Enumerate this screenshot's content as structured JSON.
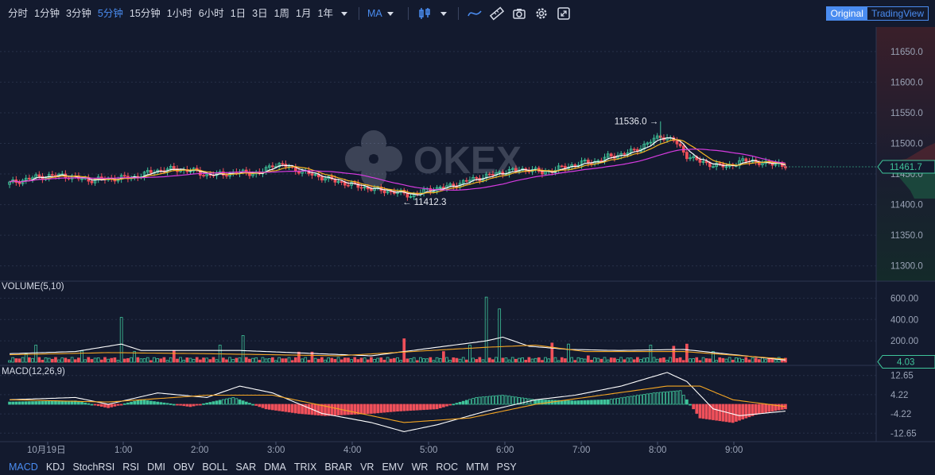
{
  "toolbar": {
    "intervals": [
      {
        "label": "分时",
        "active": false
      },
      {
        "label": "1分钟",
        "active": false
      },
      {
        "label": "3分钟",
        "active": false
      },
      {
        "label": "5分钟",
        "active": true
      },
      {
        "label": "15分钟",
        "active": false
      },
      {
        "label": "1小时",
        "active": false
      },
      {
        "label": "6小时",
        "active": false
      },
      {
        "label": "1日",
        "active": false
      },
      {
        "label": "3日",
        "active": false
      },
      {
        "label": "1周",
        "active": false
      },
      {
        "label": "1月",
        "active": false
      },
      {
        "label": "1年",
        "active": false
      }
    ],
    "indicator_label": "MA",
    "icons": [
      "candle-style-icon",
      "line-style-icon",
      "ruler-icon",
      "camera-icon",
      "gear-icon",
      "fullscreen-icon"
    ],
    "view_original": "Original",
    "view_tradingview": "TradingView",
    "accent_color": "#4a8cf0"
  },
  "watermark": "OKEX",
  "colors": {
    "up": "#3fc49a",
    "down": "#f0505a",
    "ma_white": "#ffffff",
    "ma_yellow": "#f5b623",
    "ma_magenta": "#d63be0",
    "ma_orange": "#f5a623",
    "last_price": "#3fc49a"
  },
  "bottom_indicators": [
    {
      "label": "MACD",
      "active": true
    },
    {
      "label": "KDJ",
      "active": false
    },
    {
      "label": "StochRSI",
      "active": false
    },
    {
      "label": "RSI",
      "active": false
    },
    {
      "label": "DMI",
      "active": false
    },
    {
      "label": "OBV",
      "active": false
    },
    {
      "label": "BOLL",
      "active": false
    },
    {
      "label": "SAR",
      "active": false
    },
    {
      "label": "DMA",
      "active": false
    },
    {
      "label": "TRIX",
      "active": false
    },
    {
      "label": "BRAR",
      "active": false
    },
    {
      "label": "VR",
      "active": false
    },
    {
      "label": "EMV",
      "active": false
    },
    {
      "label": "WR",
      "active": false
    },
    {
      "label": "ROC",
      "active": false
    },
    {
      "label": "MTM",
      "active": false
    },
    {
      "label": "PSY",
      "active": false
    }
  ],
  "chart_data": [
    {
      "type": "candlestick",
      "pane": "price",
      "ylim": [
        11275,
        11690
      ],
      "y_ticks": [
        "11300.0",
        "11350.0",
        "11400.0",
        "11450.0",
        "11500.0",
        "11550.0",
        "11600.0",
        "11650.0"
      ],
      "high_annotation": "11536.0 →",
      "high_value": 11536.0,
      "low_annotation": "← 11412.3",
      "low_value": 11412.3,
      "last_price_label": "11461.7",
      "last_price": 11461.7,
      "close_path": [
        [
          0,
          11435
        ],
        [
          8,
          11445
        ],
        [
          16,
          11448
        ],
        [
          24,
          11440
        ],
        [
          30,
          11442
        ],
        [
          38,
          11445
        ],
        [
          44,
          11455
        ],
        [
          50,
          11458
        ],
        [
          56,
          11455
        ],
        [
          60,
          11448
        ],
        [
          64,
          11450
        ],
        [
          72,
          11453
        ],
        [
          76,
          11450
        ],
        [
          80,
          11466
        ],
        [
          84,
          11463
        ],
        [
          90,
          11452
        ],
        [
          98,
          11440
        ],
        [
          106,
          11430
        ],
        [
          112,
          11424
        ],
        [
          118,
          11420
        ],
        [
          122,
          11415
        ],
        [
          128,
          11425
        ],
        [
          134,
          11430
        ],
        [
          140,
          11440
        ],
        [
          146,
          11448
        ],
        [
          152,
          11455
        ],
        [
          158,
          11458
        ],
        [
          162,
          11452
        ],
        [
          168,
          11460
        ],
        [
          174,
          11468
        ],
        [
          178,
          11470
        ],
        [
          182,
          11478
        ],
        [
          186,
          11482
        ],
        [
          190,
          11488
        ],
        [
          194,
          11500
        ],
        [
          198,
          11512
        ],
        [
          202,
          11505
        ],
        [
          206,
          11480
        ],
        [
          210,
          11470
        ],
        [
          214,
          11465
        ],
        [
          218,
          11462
        ],
        [
          222,
          11470
        ],
        [
          226,
          11472
        ],
        [
          230,
          11466
        ],
        [
          234,
          11468
        ],
        [
          236,
          11461.7
        ]
      ],
      "x_last": 236
    },
    {
      "type": "bar",
      "pane": "volume",
      "title": "VOLUME(5,10)",
      "ylim": [
        0,
        700
      ],
      "y_ticks": [
        "200.00",
        "400.00",
        "600.00"
      ],
      "last_label": "4.03",
      "last_value": 4.03,
      "spikes": [
        [
          5,
          80
        ],
        [
          8,
          160
        ],
        [
          22,
          105
        ],
        [
          34,
          420
        ],
        [
          38,
          100
        ],
        [
          50,
          110
        ],
        [
          64,
          160
        ],
        [
          71,
          250
        ],
        [
          88,
          95
        ],
        [
          92,
          95
        ],
        [
          120,
          220
        ],
        [
          132,
          100
        ],
        [
          140,
          160
        ],
        [
          145,
          610
        ],
        [
          149,
          500
        ],
        [
          165,
          180
        ],
        [
          170,
          170
        ],
        [
          176,
          60
        ],
        [
          195,
          160
        ],
        [
          202,
          150
        ],
        [
          206,
          170
        ],
        [
          214,
          100
        ]
      ],
      "ma_path": [
        [
          0,
          80
        ],
        [
          20,
          100
        ],
        [
          34,
          170
        ],
        [
          40,
          110
        ],
        [
          70,
          110
        ],
        [
          110,
          60
        ],
        [
          145,
          200
        ],
        [
          150,
          235
        ],
        [
          158,
          150
        ],
        [
          170,
          120
        ],
        [
          185,
          110
        ],
        [
          205,
          120
        ],
        [
          236,
          20
        ]
      ],
      "ma2_path": [
        [
          0,
          70
        ],
        [
          30,
          90
        ],
        [
          60,
          80
        ],
        [
          100,
          60
        ],
        [
          145,
          140
        ],
        [
          160,
          160
        ],
        [
          175,
          100
        ],
        [
          205,
          100
        ],
        [
          236,
          30
        ]
      ]
    },
    {
      "type": "bar",
      "pane": "macd",
      "title": "MACD(12,26,9)",
      "ylim": [
        -15,
        15
      ],
      "y_ticks": [
        "12.65",
        "4.22",
        "-4.22",
        "-12.65"
      ],
      "dif_path": [
        [
          0,
          2
        ],
        [
          20,
          3
        ],
        [
          30,
          0
        ],
        [
          45,
          5
        ],
        [
          60,
          3
        ],
        [
          70,
          8
        ],
        [
          80,
          5
        ],
        [
          95,
          -4
        ],
        [
          110,
          -8
        ],
        [
          120,
          -12
        ],
        [
          130,
          -9
        ],
        [
          145,
          -3
        ],
        [
          160,
          2
        ],
        [
          172,
          4
        ],
        [
          186,
          8
        ],
        [
          200,
          14
        ],
        [
          206,
          10
        ],
        [
          214,
          -2
        ],
        [
          222,
          -5
        ],
        [
          236,
          -3
        ]
      ],
      "dea_path": [
        [
          0,
          2
        ],
        [
          30,
          1
        ],
        [
          60,
          4
        ],
        [
          80,
          4
        ],
        [
          100,
          -2
        ],
        [
          120,
          -8
        ],
        [
          140,
          -6
        ],
        [
          160,
          0
        ],
        [
          180,
          4
        ],
        [
          200,
          8
        ],
        [
          210,
          8
        ],
        [
          220,
          2
        ],
        [
          236,
          -1
        ]
      ],
      "histogram": [
        [
          0,
          1
        ],
        [
          20,
          1.5
        ],
        [
          30,
          -1.5
        ],
        [
          40,
          2
        ],
        [
          55,
          -1
        ],
        [
          68,
          3
        ],
        [
          78,
          -2
        ],
        [
          88,
          -4
        ],
        [
          96,
          -5
        ],
        [
          110,
          -4
        ],
        [
          118,
          -3
        ],
        [
          130,
          -2
        ],
        [
          142,
          3
        ],
        [
          150,
          4
        ],
        [
          160,
          2
        ],
        [
          172,
          1.5
        ],
        [
          182,
          2
        ],
        [
          196,
          5
        ],
        [
          204,
          6
        ],
        [
          210,
          -6
        ],
        [
          220,
          -8
        ],
        [
          228,
          -4
        ],
        [
          236,
          -2
        ]
      ]
    }
  ],
  "x_axis": {
    "labels": [
      "10月19日",
      "1:00",
      "2:00",
      "3:00",
      "4:00",
      "5:00",
      "6:00",
      "7:00",
      "8:00",
      "9:00"
    ]
  }
}
